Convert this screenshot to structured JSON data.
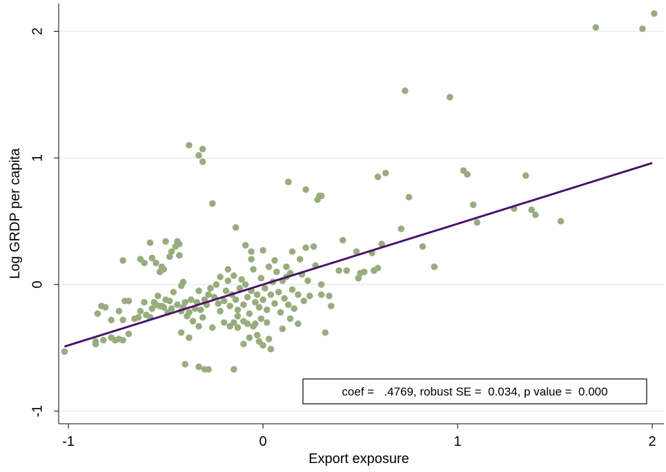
{
  "chart_data": {
    "type": "scatter",
    "xlabel": "Export exposure",
    "ylabel": "Log GRDP per capita",
    "annotation": "coef =   .4769, robust SE =  0.034, p value =  0.000",
    "xlim": [
      -1.05,
      2.06
    ],
    "ylim": [
      -1.1,
      2.22
    ],
    "xticks": [
      -1,
      0,
      1,
      2
    ],
    "yticks": [
      -1,
      0,
      1,
      2
    ],
    "grid": true,
    "color": "#98ad7e",
    "x": [
      1.71,
      1.95,
      2.01,
      0.73,
      0.96,
      -0.38,
      -0.31,
      -0.33,
      -0.31,
      1.03,
      1.05,
      0.63,
      0.59,
      1.35,
      0.13,
      0.22,
      0.29,
      0.3,
      0.28,
      0.75,
      -0.26,
      1.08,
      1.29,
      1.38,
      1.4,
      1.1,
      1.53,
      0.71,
      -0.14,
      0.82,
      0.88,
      0.61,
      0.41,
      0.48,
      0.56,
      0.57,
      0.59,
      0.52,
      0.49,
      0.5,
      0.43,
      0.39,
      0.34,
      0.35,
      0.32,
      0.3,
      0.3,
      0.27,
      0.26,
      0.22,
      0.19,
      0.15,
      0.12,
      -1.02,
      -0.86,
      -0.86,
      -0.82,
      -0.78,
      -0.76,
      -0.74,
      -0.72,
      -0.69,
      -0.85,
      -0.83,
      -0.81,
      -0.78,
      -0.74,
      -0.72,
      -0.71,
      -0.69,
      -0.66,
      -0.64,
      -0.63,
      -0.61,
      -0.6,
      -0.58,
      -0.57,
      -0.56,
      -0.55,
      -0.54,
      -0.53,
      -0.52,
      -0.51,
      -0.5,
      -0.49,
      -0.48,
      -0.47,
      -0.46,
      -0.44,
      -0.42,
      -0.41,
      -0.4,
      -0.39,
      -0.38,
      -0.37,
      -0.36,
      -0.35,
      -0.34,
      -0.33,
      -0.32,
      -0.31,
      -0.3,
      -0.29,
      -0.28,
      -0.72,
      -0.63,
      -0.61,
      -0.58,
      -0.57,
      -0.55,
      -0.53,
      -0.52,
      -0.51,
      -0.5,
      -0.48,
      -0.47,
      -0.45,
      -0.44,
      -0.43,
      -0.43,
      -0.41,
      -0.42,
      -0.4,
      -0.33,
      -0.3,
      -0.28,
      -0.15,
      -0.42,
      -0.38,
      -0.33,
      -0.26,
      -0.2,
      -0.17,
      -0.15,
      -0.13,
      -0.1,
      -0.08,
      -0.05,
      -0.03,
      -0.02,
      0.0,
      0.03,
      0.04,
      -0.1,
      -0.07,
      0.1,
      0.14,
      0.18,
      -0.25,
      -0.23,
      -0.22,
      -0.2,
      -0.19,
      -0.18,
      -0.17,
      -0.16,
      -0.15,
      -0.14,
      -0.13,
      -0.12,
      -0.11,
      -0.1,
      -0.09,
      -0.08,
      -0.07,
      -0.06,
      -0.05,
      -0.04,
      -0.03,
      -0.02,
      -0.01,
      0.0,
      0.01,
      0.02,
      0.03,
      0.04,
      0.05,
      0.06,
      0.07,
      0.08,
      0.09,
      0.1,
      0.11,
      0.12,
      0.13,
      0.14,
      0.15,
      0.16,
      0.18,
      0.2,
      0.21,
      0.23,
      0.24,
      -0.09,
      -0.06,
      -0.06,
      0.0,
      0.06,
      -0.18,
      -0.22,
      -0.24,
      -0.27,
      -0.01,
      -0.04,
      0.02,
      -0.13
    ],
    "values": [
      2.03,
      2.02,
      2.14,
      1.53,
      1.48,
      1.1,
      1.07,
      1.02,
      0.97,
      0.9,
      0.87,
      0.88,
      0.85,
      0.86,
      0.81,
      0.75,
      0.7,
      0.7,
      0.67,
      0.69,
      0.64,
      0.63,
      0.6,
      0.59,
      0.55,
      0.49,
      0.5,
      0.44,
      0.45,
      0.3,
      0.14,
      0.32,
      0.35,
      0.26,
      0.25,
      0.11,
      0.13,
      0.1,
      0.05,
      0.09,
      0.11,
      0.11,
      -0.09,
      -0.17,
      -0.38,
      -0.08,
      0.0,
      0.15,
      0.3,
      0.29,
      0.2,
      0.26,
      0.14,
      -0.53,
      -0.47,
      -0.45,
      -0.44,
      -0.42,
      -0.44,
      -0.43,
      -0.44,
      -0.39,
      -0.23,
      -0.17,
      -0.18,
      -0.28,
      -0.21,
      -0.28,
      -0.13,
      -0.13,
      -0.27,
      -0.26,
      -0.21,
      -0.14,
      -0.24,
      -0.26,
      -0.19,
      -0.14,
      -0.16,
      -0.09,
      -0.17,
      -0.17,
      -0.18,
      -0.12,
      -0.22,
      -0.13,
      -0.19,
      -0.06,
      -0.16,
      -0.21,
      -0.18,
      -0.14,
      -0.25,
      -0.22,
      -0.12,
      -0.29,
      -0.19,
      -0.14,
      -0.05,
      -0.2,
      -0.26,
      -0.12,
      -0.16,
      -0.08,
      0.19,
      0.2,
      0.17,
      0.33,
      0.21,
      0.17,
      0.1,
      0.14,
      0.12,
      0.34,
      0.22,
      0.26,
      0.3,
      0.34,
      0.32,
      0.23,
      0.02,
      -0.01,
      -0.63,
      -0.65,
      -0.67,
      -0.67,
      -0.67,
      -0.38,
      -0.42,
      -0.33,
      -0.34,
      -0.3,
      -0.33,
      -0.3,
      -0.34,
      -0.29,
      -0.31,
      -0.33,
      -0.4,
      -0.45,
      -0.48,
      -0.43,
      -0.51,
      -0.47,
      -0.42,
      -0.35,
      -0.27,
      -0.31,
      -0.1,
      -0.15,
      -0.21,
      -0.13,
      -0.05,
      0.03,
      -0.17,
      -0.08,
      0.07,
      -0.12,
      -0.2,
      -0.03,
      0.04,
      -0.16,
      0.0,
      -0.1,
      -0.23,
      -0.05,
      0.12,
      -0.14,
      -0.08,
      -0.18,
      0.05,
      -0.12,
      -0.03,
      -0.2,
      0.14,
      -0.08,
      0.02,
      -0.15,
      0.1,
      -0.06,
      -0.22,
      0.03,
      -0.11,
      0.06,
      -0.16,
      0.09,
      -0.04,
      -0.19,
      -0.08,
      0.08,
      -0.13,
      0.03,
      -0.09,
      0.31,
      0.26,
      0.2,
      0.27,
      0.19,
      0.12,
      0.06,
      0.0,
      -0.03,
      -0.27,
      -0.31,
      -0.3,
      -0.25
    ],
    "fit": {
      "x": [
        -1.02,
        2.0
      ],
      "values": [
        -0.49,
        0.96
      ],
      "color": "#4a1268"
    }
  }
}
